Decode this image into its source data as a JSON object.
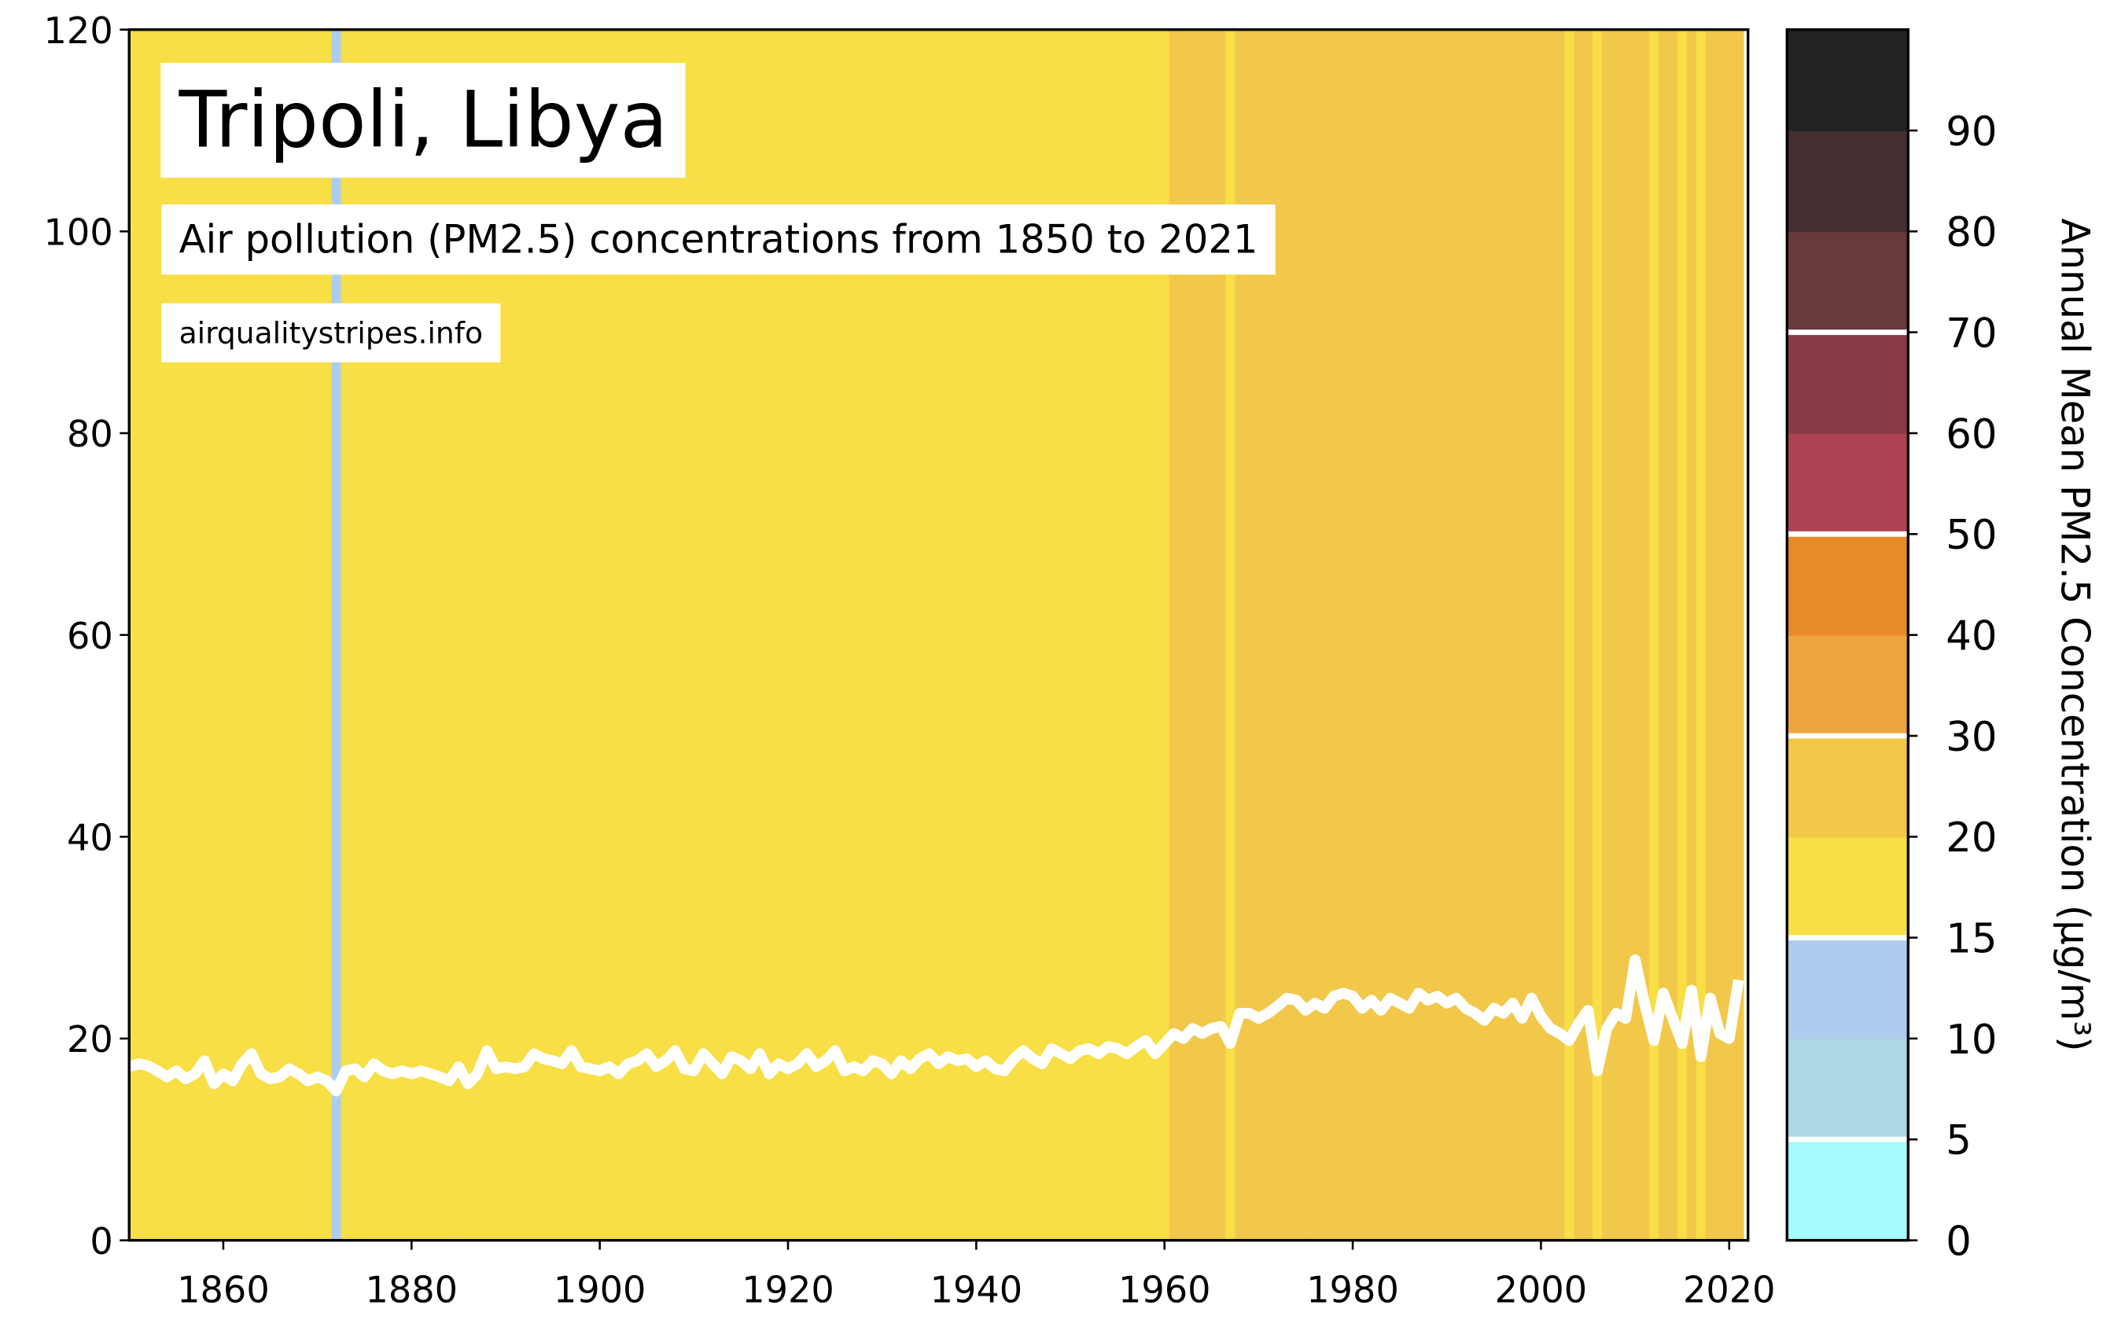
{
  "chart_data": {
    "type": "stripes-line",
    "title": "Tripoli, Libya",
    "subtitle": "Air pollution (PM2.5) concentrations from 1850 to 2021",
    "source": "airqualitystripes.info",
    "line_color": "#ffffff",
    "xlim": [
      1850,
      2022
    ],
    "xticks": [
      1860,
      1880,
      1900,
      1920,
      1940,
      1960,
      1980,
      2000,
      2020
    ],
    "ylim": [
      0,
      120
    ],
    "yticks": [
      0,
      20,
      40,
      60,
      80,
      100,
      120
    ],
    "x": [
      1850,
      1851,
      1852,
      1853,
      1854,
      1855,
      1856,
      1857,
      1858,
      1859,
      1860,
      1861,
      1862,
      1863,
      1864,
      1865,
      1866,
      1867,
      1868,
      1869,
      1870,
      1871,
      1872,
      1873,
      1874,
      1875,
      1876,
      1877,
      1878,
      1879,
      1880,
      1881,
      1882,
      1883,
      1884,
      1885,
      1886,
      1887,
      1888,
      1889,
      1890,
      1891,
      1892,
      1893,
      1894,
      1895,
      1896,
      1897,
      1898,
      1899,
      1900,
      1901,
      1902,
      1903,
      1904,
      1905,
      1906,
      1907,
      1908,
      1909,
      1910,
      1911,
      1912,
      1913,
      1914,
      1915,
      1916,
      1917,
      1918,
      1919,
      1920,
      1921,
      1922,
      1923,
      1924,
      1925,
      1926,
      1927,
      1928,
      1929,
      1930,
      1931,
      1932,
      1933,
      1934,
      1935,
      1936,
      1937,
      1938,
      1939,
      1940,
      1941,
      1942,
      1943,
      1944,
      1945,
      1946,
      1947,
      1948,
      1949,
      1950,
      1951,
      1952,
      1953,
      1954,
      1955,
      1956,
      1957,
      1958,
      1959,
      1960,
      1961,
      1962,
      1963,
      1964,
      1965,
      1966,
      1967,
      1968,
      1969,
      1970,
      1971,
      1972,
      1973,
      1974,
      1975,
      1976,
      1977,
      1978,
      1979,
      1980,
      1981,
      1982,
      1983,
      1984,
      1985,
      1986,
      1987,
      1988,
      1989,
      1990,
      1991,
      1992,
      1993,
      1994,
      1995,
      1996,
      1997,
      1998,
      1999,
      2000,
      2001,
      2002,
      2003,
      2004,
      2005,
      2006,
      2007,
      2008,
      2009,
      2010,
      2011,
      2012,
      2013,
      2014,
      2015,
      2016,
      2017,
      2018,
      2019,
      2020,
      2021
    ],
    "values": [
      17.2,
      17.5,
      17.3,
      16.8,
      16.2,
      16.8,
      16.0,
      16.5,
      17.8,
      15.5,
      16.5,
      15.8,
      17.5,
      18.5,
      16.5,
      16.0,
      16.2,
      17.0,
      16.5,
      15.8,
      16.2,
      15.8,
      14.8,
      16.8,
      17.0,
      16.2,
      17.5,
      16.8,
      16.5,
      16.8,
      16.5,
      16.8,
      16.5,
      16.2,
      15.8,
      17.2,
      15.5,
      16.5,
      18.8,
      17.0,
      17.2,
      17.0,
      17.2,
      18.5,
      18.0,
      17.8,
      17.5,
      18.8,
      17.2,
      17.0,
      16.8,
      17.2,
      16.5,
      17.5,
      17.8,
      18.5,
      17.2,
      17.8,
      18.8,
      17.0,
      16.8,
      18.5,
      17.5,
      16.5,
      18.2,
      17.8,
      17.0,
      18.5,
      16.5,
      17.5,
      17.0,
      17.5,
      18.5,
      17.2,
      17.8,
      18.8,
      16.8,
      17.2,
      16.8,
      17.8,
      17.5,
      16.5,
      17.8,
      17.0,
      18.0,
      18.5,
      17.5,
      18.2,
      17.8,
      18.0,
      17.2,
      17.8,
      17.0,
      16.8,
      18.0,
      18.8,
      18.0,
      17.5,
      19.0,
      18.5,
      18.0,
      18.8,
      19.0,
      18.5,
      19.2,
      19.0,
      18.5,
      19.2,
      19.8,
      18.5,
      19.5,
      20.5,
      20.0,
      21.0,
      20.5,
      21.0,
      21.2,
      19.5,
      22.5,
      22.5,
      22.0,
      22.5,
      23.2,
      24.0,
      23.8,
      22.8,
      23.5,
      23.0,
      24.2,
      24.5,
      24.2,
      23.0,
      23.8,
      22.8,
      24.0,
      23.5,
      23.0,
      24.5,
      23.8,
      24.2,
      23.5,
      24.0,
      23.0,
      22.5,
      21.8,
      23.0,
      22.5,
      23.5,
      22.0,
      24.0,
      22.2,
      21.0,
      20.5,
      19.8,
      21.5,
      22.8,
      16.8,
      21.0,
      22.5,
      22.0,
      27.8,
      23.5,
      19.8,
      24.5,
      22.0,
      19.5,
      24.8,
      18.2,
      24.0,
      20.5,
      20.0,
      25.8
    ],
    "colorbar": {
      "label": "Annual Mean PM2.5 Concentration (µg/m³)",
      "bounds": [
        0,
        5,
        10,
        15,
        20,
        30,
        40,
        50,
        60,
        70,
        80,
        90,
        100
      ],
      "colors": [
        "#a6fbfd",
        "#add8e6",
        "#aecdee",
        "#f7df45",
        "#f2c84a",
        "#efa53f",
        "#e68a2a",
        "#ad4352",
        "#883a47",
        "#683a3d",
        "#452d30",
        "#222222"
      ],
      "ticks": [
        0,
        5,
        10,
        15,
        20,
        30,
        40,
        50,
        60,
        70,
        80,
        90
      ],
      "lines": [
        5,
        15,
        30,
        50,
        70
      ]
    }
  }
}
